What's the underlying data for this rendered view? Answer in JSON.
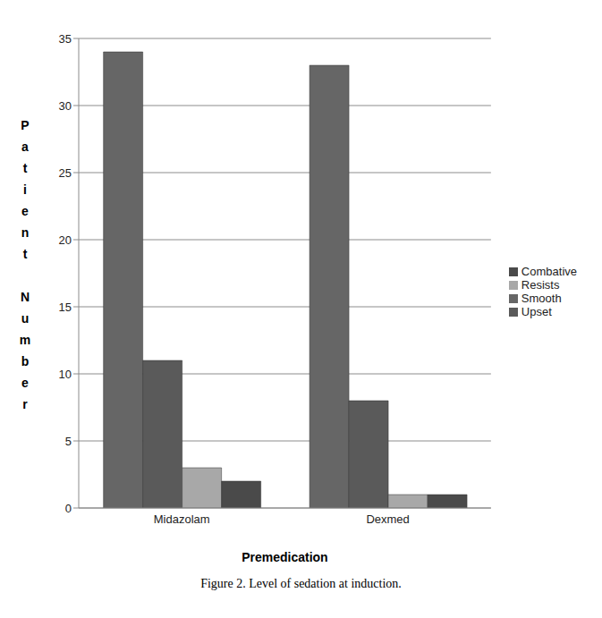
{
  "chart_data": {
    "type": "bar",
    "title": "Figure 2. Level of sedation at induction.",
    "x_label": "Premedication",
    "y_label": "Patient Number",
    "categories": [
      "Midazolam",
      "Dexmed"
    ],
    "series": [
      {
        "name": "Smooth",
        "color": "#666666",
        "values": [
          34,
          33
        ]
      },
      {
        "name": "Upset",
        "color": "#5a5a5a",
        "values": [
          11,
          8
        ]
      },
      {
        "name": "Resists",
        "color": "#a8a8a8",
        "values": [
          3,
          1
        ]
      },
      {
        "name": "Combative",
        "color": "#4a4a4a",
        "values": [
          2,
          1
        ]
      }
    ],
    "ylim": [
      0,
      35
    ],
    "yticks": [
      0,
      5,
      10,
      15,
      20,
      25,
      30,
      35
    ],
    "grid": true,
    "legend": "right"
  }
}
